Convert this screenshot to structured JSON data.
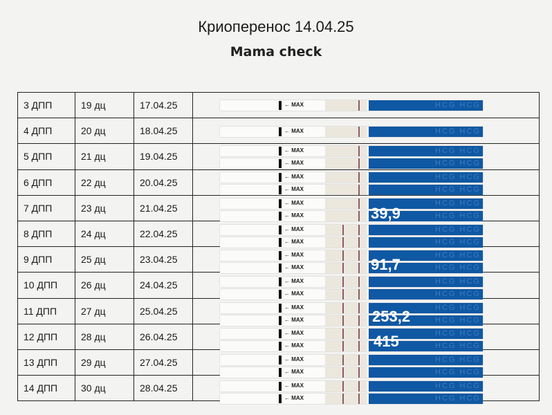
{
  "header": {
    "title": "Криоперенос 14.04.25",
    "subtitle": "Mama check"
  },
  "strip_label": "← MAX",
  "strip_brand": "HCG HCG HCG HCG HCG HCG",
  "colors": {
    "strip_blue": "#0f58a3",
    "line": "#8a5a6a",
    "annotation": "#ffffff"
  },
  "rows": [
    {
      "dpp": "3 ДПП",
      "dc": "19 дц",
      "date": "17.04.25",
      "strips": 1,
      "test_line": false
    },
    {
      "dpp": "4 ДПП",
      "dc": "20 дц",
      "date": "18.04.25",
      "strips": 1,
      "test_line": false
    },
    {
      "dpp": "5 ДПП",
      "dc": "21 дц",
      "date": "19.04.25",
      "strips": 2,
      "test_line": false
    },
    {
      "dpp": "6 ДПП",
      "dc": "22 дц",
      "date": "20.04.25",
      "strips": 2,
      "test_line": false
    },
    {
      "dpp": "7 ДПП",
      "dc": "23 дц",
      "date": "21.04.25",
      "strips": 2,
      "test_line": false
    },
    {
      "dpp": "8 ДПП",
      "dc": "24 дц",
      "date": "22.04.25",
      "strips": 2,
      "test_line": true
    },
    {
      "dpp": "9 ДПП",
      "dc": "25 дц",
      "date": "23.04.25",
      "strips": 2,
      "test_line": true
    },
    {
      "dpp": "10 ДПП",
      "dc": "26 дц",
      "date": "24.04.25",
      "strips": 2,
      "test_line": true
    },
    {
      "dpp": "11 ДПП",
      "dc": "27 дц",
      "date": "25.04.25",
      "strips": 2,
      "test_line": true
    },
    {
      "dpp": "12 ДПП",
      "dc": "28 дц",
      "date": "26.04.25",
      "strips": 2,
      "test_line": true
    },
    {
      "dpp": "13 ДПП",
      "dc": "29 дц",
      "date": "27.04.25",
      "strips": 2,
      "test_line": true
    },
    {
      "dpp": "14 ДПП",
      "dc": "30 дц",
      "date": "28.04.25",
      "strips": 2,
      "test_line": true
    }
  ],
  "annotations": [
    {
      "text": "39,9",
      "row": "7 ДПП"
    },
    {
      "text": "91,7",
      "row": "9 ДПП"
    },
    {
      "text": "253,2",
      "row": "11 ДПП"
    },
    {
      "text": "415",
      "row": "12 ДПП"
    }
  ]
}
